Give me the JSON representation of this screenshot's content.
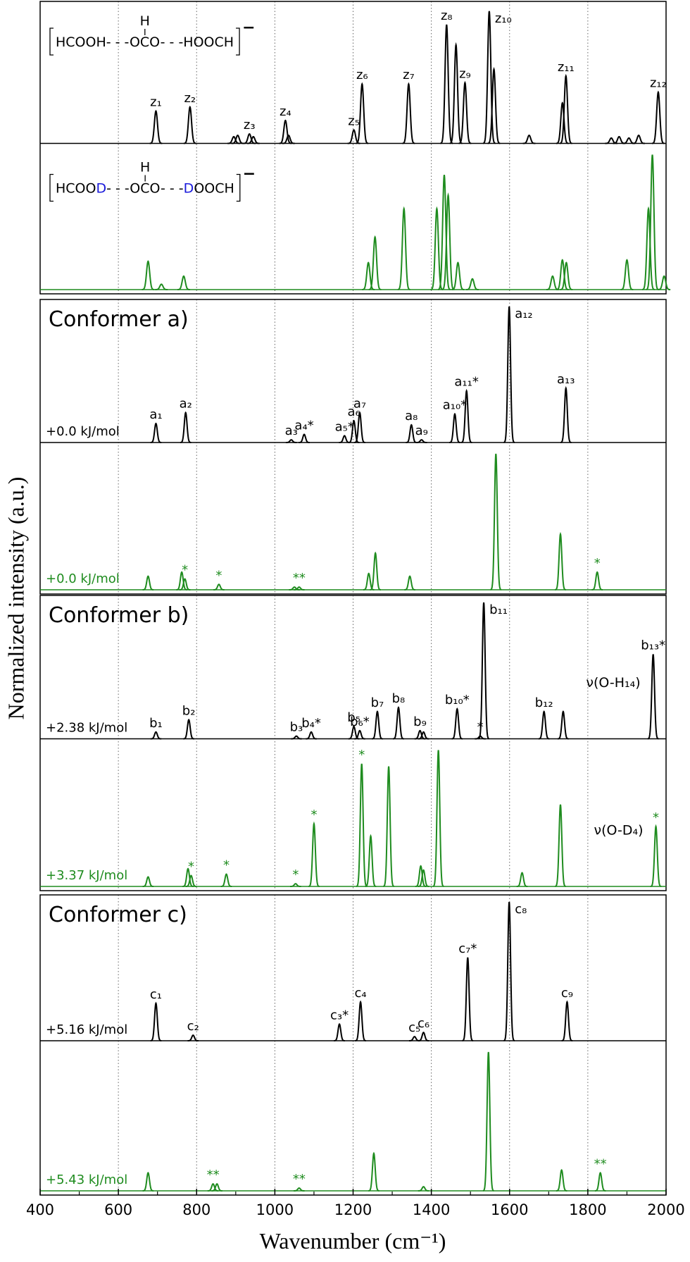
{
  "chart_data": {
    "type": "spectrum",
    "xlabel": "Wavenumber (cm⁻¹)",
    "ylabel": "Normalized intensity (a.u.)",
    "xlim": [
      400,
      2000
    ],
    "xticks": [
      400,
      600,
      800,
      1000,
      1200,
      1400,
      1600,
      1800,
      2000
    ],
    "xminorticks": [
      500,
      700,
      900,
      1100,
      1300,
      1500,
      1700,
      1900
    ],
    "ylim": [
      0,
      1
    ],
    "grid": true,
    "panels": [
      {
        "series": [
          {
            "color": "#000000",
            "formula": {
              "parts": [
                {
                  "text": "HCOOH- - -"
                },
                {
                  "text": "OCO",
                  "top": "H"
                },
                {
                  "text": "- - -HOOCH"
                }
              ],
              "charge": "−"
            },
            "x": [
              696,
              783,
              895,
              905,
              935,
              945,
              1027,
              1035,
              1202,
              1223,
              1342,
              1439,
              1463,
              1486,
              1548,
              1560,
              1650,
              1735,
              1744,
              1860,
              1880,
              1905,
              1930,
              1980
            ],
            "values": [
              0.24,
              0.27,
              0.05,
              0.06,
              0.07,
              0.05,
              0.17,
              0.06,
              0.1,
              0.44,
              0.44,
              0.88,
              0.73,
              0.45,
              0.98,
              0.55,
              0.06,
              0.3,
              0.5,
              0.04,
              0.05,
              0.04,
              0.06,
              0.38
            ],
            "peak_labels": [
              "z₁",
              "z₂",
              null,
              null,
              "z₃",
              null,
              "z₄",
              null,
              "z₅",
              "z₆",
              "z₇",
              "z₈",
              null,
              "z₉",
              "z₁₀",
              null,
              null,
              null,
              "z₁₁",
              null,
              null,
              null,
              null,
              "z₁₂"
            ]
          },
          {
            "color": "#1f8c1f",
            "formula": {
              "parts": [
                {
                  "text": "HCOO"
                },
                {
                  "text": "D",
                  "color": "#1a1adb"
                },
                {
                  "text": "- - -"
                },
                {
                  "text": "OCO",
                  "top": "H"
                },
                {
                  "text": "- - -"
                },
                {
                  "text": "D",
                  "color": "#1a1adb"
                },
                {
                  "text": "OOCH"
                }
              ],
              "charge": "−"
            },
            "x": [
              676,
              710,
              767,
              1239,
              1256,
              1330,
              1414,
              1433,
              1443,
              1468,
              1505,
              1710,
              1735,
              1745,
              1900,
              1955,
              1965,
              1995
            ],
            "values": [
              0.21,
              0.04,
              0.1,
              0.2,
              0.39,
              0.6,
              0.6,
              0.85,
              0.7,
              0.2,
              0.08,
              0.1,
              0.22,
              0.2,
              0.22,
              0.6,
              1.0,
              0.1
            ]
          }
        ]
      },
      {
        "title": "Conformer a)",
        "series": [
          {
            "name": "+0.0 kJ/mol",
            "color": "#000000",
            "x": [
              696,
              772,
              1042,
              1075,
              1178,
              1202,
              1217,
              1349,
              1375,
              1460,
              1490,
              1599,
              1744
            ],
            "values": [
              0.14,
              0.22,
              0.02,
              0.06,
              0.05,
              0.16,
              0.22,
              0.13,
              0.02,
              0.21,
              0.38,
              1.0,
              0.4
            ],
            "peak_labels": [
              "a₁",
              "a₂",
              "a₃",
              "a₄*",
              "a₅*",
              "a₆",
              "a₇",
              "a₈",
              "a₉",
              "a₁₀*",
              "a₁₁*",
              "a₁₂",
              "a₁₃"
            ]
          },
          {
            "name": "+0.0 kJ/mol",
            "color": "#1f8c1f",
            "x": [
              676,
              762,
              770,
              857,
              1050,
              1062,
              1240,
              1257,
              1345,
              1565,
              1730,
              1824
            ],
            "values": [
              0.1,
              0.13,
              0.08,
              0.04,
              0.02,
              0.02,
              0.12,
              0.27,
              0.1,
              1.0,
              0.41,
              0.13
            ],
            "peak_labels": [
              null,
              null,
              "*",
              "*",
              null,
              "**",
              null,
              null,
              null,
              null,
              null,
              "*"
            ]
          }
        ]
      },
      {
        "title": "Conformer b)",
        "series": [
          {
            "name": "+2.38 kJ/mol",
            "color": "#000000",
            "annotation": "ν(O-H₁₄)",
            "x": [
              696,
              780,
              1055,
              1093,
              1202,
              1217,
              1262,
              1316,
              1371,
              1380,
              1466,
              1525,
              1534,
              1688,
              1737,
              1967
            ],
            "values": [
              0.05,
              0.14,
              0.02,
              0.05,
              0.09,
              0.06,
              0.2,
              0.23,
              0.06,
              0.05,
              0.22,
              0.02,
              1.0,
              0.2,
              0.2,
              0.62
            ],
            "peak_labels": [
              "b₁",
              "b₂",
              "b₃",
              "b₄*",
              "b₅",
              "b₆*",
              "b₇",
              "b₈",
              "b₉",
              null,
              "b₁₀*",
              "*",
              "b₁₁",
              "b₁₂",
              null,
              "b₁₃*"
            ]
          },
          {
            "name": "+3.37 kJ/mol",
            "color": "#1f8c1f",
            "annotation": "ν(O-D₄)",
            "x": [
              676,
              778,
              786,
              876,
              1053,
              1100,
              1222,
              1245,
              1291,
              1373,
              1380,
              1418,
              1632,
              1730,
              1974
            ],
            "values": [
              0.07,
              0.13,
              0.08,
              0.09,
              0.02,
              0.46,
              0.9,
              0.37,
              0.88,
              0.15,
              0.12,
              1.0,
              0.1,
              0.6,
              0.44
            ],
            "peak_labels": [
              null,
              null,
              "*",
              "*",
              "*",
              "*",
              "*",
              null,
              null,
              null,
              null,
              null,
              null,
              null,
              "*"
            ]
          }
        ]
      },
      {
        "title": "Conformer c)",
        "series": [
          {
            "name": "+5.16 kJ/mol",
            "color": "#000000",
            "x": [
              696,
              791,
              1165,
              1219,
              1357,
              1380,
              1493,
              1599,
              1747
            ],
            "values": [
              0.27,
              0.04,
              0.12,
              0.28,
              0.03,
              0.06,
              0.6,
              1.0,
              0.28
            ],
            "peak_labels": [
              "c₁",
              "c₂",
              "c₃*",
              "c₄",
              "c₅",
              "c₆",
              "c₇*",
              "c₈",
              "c₉"
            ]
          },
          {
            "name": "+5.43 kJ/mol",
            "color": "#1f8c1f",
            "x": [
              676,
              842,
              852,
              1062,
              1253,
              1380,
              1546,
              1733,
              1832
            ],
            "values": [
              0.13,
              0.05,
              0.05,
              0.02,
              0.27,
              0.03,
              1.0,
              0.15,
              0.13
            ],
            "peak_labels": [
              null,
              "**",
              null,
              "**",
              null,
              null,
              null,
              null,
              "**"
            ]
          }
        ]
      }
    ]
  }
}
